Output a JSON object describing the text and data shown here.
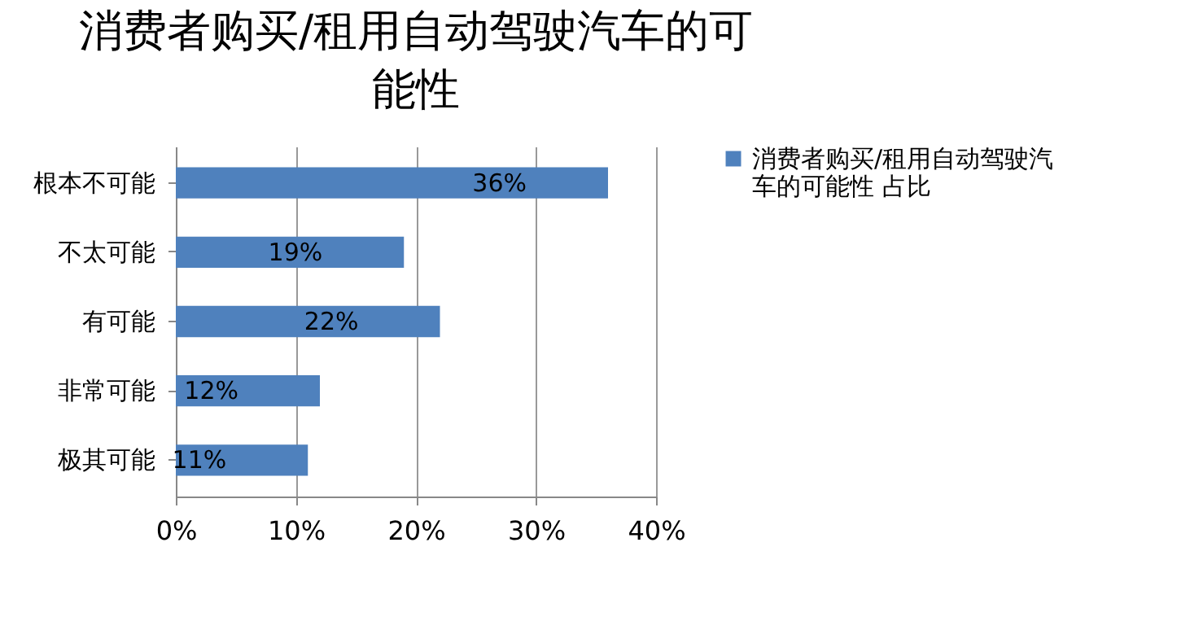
{
  "chart_data": {
    "type": "bar",
    "orientation": "horizontal",
    "title": "消费者购买/租用自动驾驶汽车的可能性",
    "categories": [
      "根本不可能",
      "不太可能",
      "有可能",
      "非常可能",
      "极其可能"
    ],
    "series": [
      {
        "name": "消费者购买/租用自动驾驶汽车的可能性 占比",
        "color": "#4f81bd",
        "values": [
          36,
          19,
          22,
          12,
          11
        ],
        "value_labels": [
          "36%",
          "19%",
          "22%",
          "12%",
          "11%"
        ]
      }
    ],
    "xlim": [
      0,
      40
    ],
    "xticks": [
      {
        "value": 0,
        "label": "0%"
      },
      {
        "value": 10,
        "label": "10%"
      },
      {
        "value": 20,
        "label": "20%"
      },
      {
        "value": 30,
        "label": "30%"
      },
      {
        "value": 40,
        "label": "40%"
      }
    ],
    "grid": "x",
    "legend": "right"
  }
}
